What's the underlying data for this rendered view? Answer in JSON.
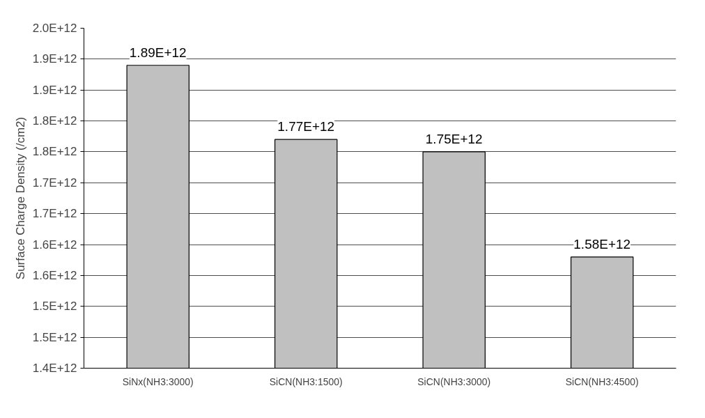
{
  "chart_data": {
    "type": "bar",
    "ylabel": "Surface Charge Density (/cm2)",
    "categories": [
      "SiNx(NH3:3000)",
      "SiCN(NH3:1500)",
      "SiCN(NH3:3000)",
      "SiCN(NH3:4500)"
    ],
    "values": [
      1890000000000.0,
      1770000000000.0,
      1750000000000.0,
      1580000000000.0
    ],
    "value_labels": [
      "1.89E+12",
      "1.77E+12",
      "1.75E+12",
      "1.58E+12"
    ],
    "color": "#c0c0c0",
    "ylim": [
      1400000000000.0,
      1950000000000.0
    ],
    "yticks": [
      {
        "value": 1400000000000.0,
        "label": "1.4E+12"
      },
      {
        "value": 1450000000000.0,
        "label": "1.5E+12"
      },
      {
        "value": 1500000000000.0,
        "label": "1.5E+12"
      },
      {
        "value": 1550000000000.0,
        "label": "1.6E+12"
      },
      {
        "value": 1600000000000.0,
        "label": "1.6E+12"
      },
      {
        "value": 1650000000000.0,
        "label": "1.7E+12"
      },
      {
        "value": 1700000000000.0,
        "label": "1.7E+12"
      },
      {
        "value": 1750000000000.0,
        "label": "1.8E+12"
      },
      {
        "value": 1800000000000.0,
        "label": "1.8E+12"
      },
      {
        "value": 1850000000000.0,
        "label": "1.9E+12"
      },
      {
        "value": 1900000000000.0,
        "label": "1.9E+12"
      },
      {
        "value": 1950000000000.0,
        "label": "2.0E+12"
      }
    ],
    "grid": "y"
  }
}
